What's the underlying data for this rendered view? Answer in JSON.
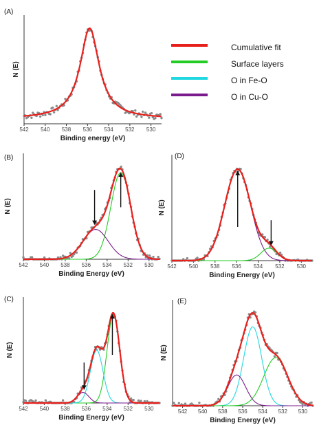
{
  "legend": [
    {
      "key": "cumulative",
      "label": "Cumulative fit",
      "color": "#e8201c"
    },
    {
      "key": "surface",
      "label": "Surface layers",
      "color": "#22cc22"
    },
    {
      "key": "feo",
      "label": "O in Fe-O",
      "color": "#22d8e0"
    },
    {
      "key": "cuo",
      "label": "O in Cu-O",
      "color": "#7a1a8c"
    }
  ],
  "data_color": "#8a8a8a",
  "chart_data": [
    {
      "id": "A",
      "type": "line",
      "panel_label": "(A)",
      "xlabel": "Binding energy (eV)",
      "ylabel": "N (E)",
      "xlim": [
        542,
        529
      ],
      "xticks": [
        542,
        540,
        538,
        536,
        534,
        532,
        530
      ],
      "ylim": [
        0,
        1.08
      ],
      "components": [],
      "cumulative": {
        "baseline": 0.05,
        "peaks": [
          {
            "center": 535.8,
            "height": 0.95,
            "width": 1.1,
            "shape": "lorentz"
          }
        ]
      },
      "arrows": []
    },
    {
      "id": "B",
      "type": "line",
      "panel_label": "(B)",
      "xlabel": "Binding Energy (eV)",
      "ylabel": "N (E)",
      "xlim": [
        542,
        529
      ],
      "xticks": [
        542,
        540,
        538,
        536,
        534,
        532,
        530
      ],
      "ylim": [
        0,
        1.1
      ],
      "components": [
        {
          "key": "surface",
          "center": 532.7,
          "height": 0.9,
          "width": 0.95
        },
        {
          "key": "cuo",
          "center": 535.1,
          "height": 0.31,
          "width": 1.2
        }
      ],
      "cumulative": {
        "baseline": 0.0
      },
      "arrows": [
        {
          "x": 535.2,
          "from": 0.72,
          "to": 0.36,
          "dir": "down"
        },
        {
          "x": 532.7,
          "from": 0.54,
          "to": 0.9,
          "dir": "up"
        }
      ]
    },
    {
      "id": "D",
      "type": "line",
      "panel_label": "(D)",
      "xlabel": "Binding Energy (eV)",
      "ylabel": "N (E)",
      "xlim": [
        542,
        529
      ],
      "xticks": [
        542,
        540,
        538,
        536,
        534,
        532,
        530
      ],
      "ylim": [
        0,
        1.1
      ],
      "components": [
        {
          "key": "cuo",
          "center": 535.9,
          "height": 0.95,
          "width": 1.2
        },
        {
          "key": "surface",
          "center": 533.0,
          "height": 0.13,
          "width": 0.75
        }
      ],
      "cumulative": {
        "baseline": 0.0
      },
      "arrows": [
        {
          "x": 535.9,
          "from": 0.35,
          "to": 0.93,
          "dir": "up"
        },
        {
          "x": 532.8,
          "from": 0.42,
          "to": 0.16,
          "dir": "down"
        }
      ]
    },
    {
      "id": "C",
      "type": "line",
      "panel_label": "(C)",
      "xlabel": "Binding Energy (eV)",
      "ylabel": "N (E)",
      "xlim": [
        542,
        529
      ],
      "xticks": [
        542,
        540,
        538,
        536,
        534,
        532,
        530
      ],
      "ylim": [
        0,
        1.1
      ],
      "components": [
        {
          "key": "surface",
          "center": 533.4,
          "height": 0.92,
          "width": 0.6
        },
        {
          "key": "feo",
          "center": 535.0,
          "height": 0.55,
          "width": 0.6
        },
        {
          "key": "cuo",
          "center": 536.3,
          "height": 0.11,
          "width": 0.55
        }
      ],
      "cumulative": {
        "baseline": 0.0
      },
      "arrows": [
        {
          "x": 536.2,
          "from": 0.42,
          "to": 0.14,
          "dir": "down"
        },
        {
          "x": 533.5,
          "from": 0.5,
          "to": 0.92,
          "dir": "up"
        }
      ]
    },
    {
      "id": "E",
      "type": "line",
      "panel_label": "(E)",
      "xlabel": "Binding Energy (eV)",
      "ylabel": "N (E)",
      "xlim": [
        543,
        529
      ],
      "xticks": [
        542,
        540,
        538,
        536,
        534,
        532,
        530
      ],
      "ylim": [
        0,
        1.1
      ],
      "components": [
        {
          "key": "feo",
          "center": 535.0,
          "height": 0.82,
          "width": 0.9
        },
        {
          "key": "surface",
          "center": 532.7,
          "height": 0.5,
          "width": 1.2
        },
        {
          "key": "cuo",
          "center": 536.6,
          "height": 0.32,
          "width": 0.9
        }
      ],
      "cumulative": {
        "baseline": 0.0
      },
      "arrows": []
    }
  ]
}
